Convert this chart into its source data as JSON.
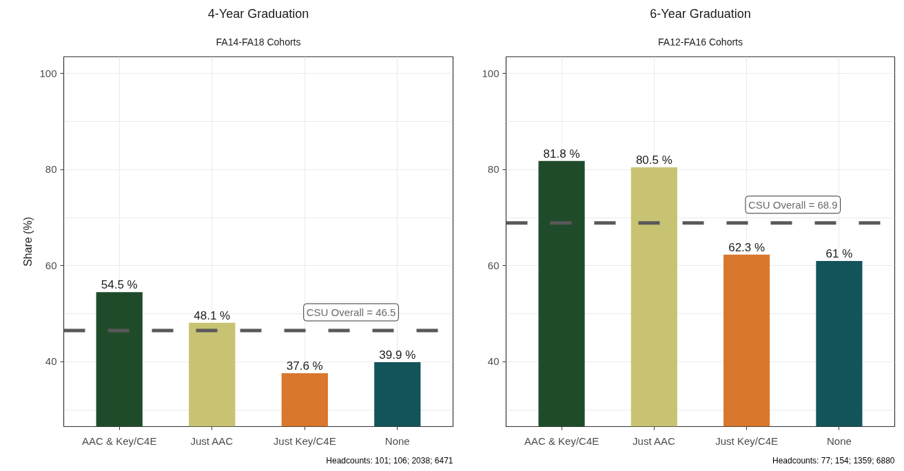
{
  "chart_data": [
    {
      "type": "bar",
      "title": "4-Year Graduation",
      "subtitle": "FA14-FA18 Cohorts",
      "ylabel": "Share (%)",
      "categories": [
        "AAC & Key/C4E",
        "Just AAC",
        "Just Key/C4E",
        "None"
      ],
      "values": [
        54.5,
        48.1,
        37.6,
        39.9
      ],
      "colors": [
        "#204b2b",
        "#c8c372",
        "#d8772d",
        "#12545a"
      ],
      "value_labels": [
        "54.5 %",
        "48.1 %",
        "37.6 %",
        "39.9 %"
      ],
      "ylim": [
        26.5,
        103.5
      ],
      "yticks": [
        {
          "value": 30,
          "label": null
        },
        40,
        {
          "value": 50,
          "label": null
        },
        60,
        {
          "value": 70,
          "label": null
        },
        80,
        {
          "value": 90,
          "label": null
        },
        100
      ],
      "grid": true,
      "ref_lines": [
        {
          "axis": "y",
          "value": 46.5,
          "label": "CSU Overall = 46.5",
          "color": "#595959",
          "line_style": "dashed"
        }
      ],
      "annotations": [
        "Headcounts: 101; 106; 2038; 6471"
      ]
    },
    {
      "type": "bar",
      "title": "6-Year Graduation",
      "subtitle": "FA12-FA16 Cohorts",
      "categories": [
        "AAC & Key/C4E",
        "Just AAC",
        "Just Key/C4E",
        "None"
      ],
      "values": [
        81.8,
        80.5,
        62.3,
        61
      ],
      "colors": [
        "#204b2b",
        "#c8c372",
        "#d8772d",
        "#12545a"
      ],
      "value_labels": [
        "81.8 %",
        "80.5 %",
        "62.3 %",
        "61 %"
      ],
      "ylim": [
        26.5,
        103.5
      ],
      "yticks": [
        {
          "value": 30,
          "label": null
        },
        40,
        {
          "value": 50,
          "label": null
        },
        60,
        {
          "value": 70,
          "label": null
        },
        80,
        {
          "value": 90,
          "label": null
        },
        100
      ],
      "grid": true,
      "ref_lines": [
        {
          "axis": "y",
          "value": 68.9,
          "label": "CSU Overall = 68.9",
          "color": "#595959",
          "line_style": "dashed"
        }
      ],
      "annotations": [
        "Headcounts: 77; 154; 1359; 6880"
      ]
    }
  ]
}
